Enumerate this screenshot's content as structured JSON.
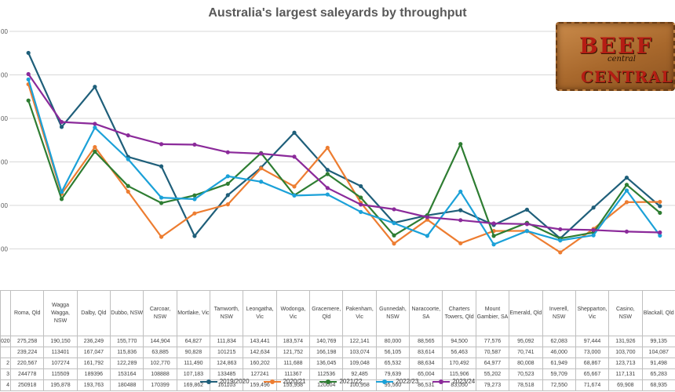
{
  "logo": {
    "word1": "BEEF",
    "word2": "central",
    "word3": "CENTRAL"
  },
  "chart_data": {
    "type": "line",
    "title": "Australia's largest saleyards by throughput",
    "categories": [
      "Roma, Qld",
      "Wagga Wagga, NSW",
      "Dalby, Qld",
      "Dubbo, NSW",
      "Carcoar, NSW",
      "Mortlake, Vic",
      "Tamworth, NSW",
      "Leongatha, Vic",
      "Wodonga, Vic",
      "Gracemere, Qld",
      "Pakenham, Vic",
      "Gunnedah, NSW",
      "Naracoorte, SA",
      "Charters Towers, Qld",
      "Mount Gambier, SA",
      "Emerald, Qld",
      "Inverell, NSW",
      "Shepparton, Vic",
      "Casino, NSW",
      "Blackall, Qld"
    ],
    "y_tick_labels": [
      "00",
      "00",
      "00",
      "00",
      "00",
      "00"
    ],
    "series": [
      {
        "name": "2019/2020",
        "color": "#1f5f7a",
        "row_label": "020",
        "values": [
          275258,
          190150,
          236249,
          155770,
          144904,
          64827,
          111834,
          143441,
          183574,
          140769,
          122141,
          80000,
          88565,
          94500,
          77576,
          95092,
          62083,
          97444,
          131926,
          99135
        ],
        "display": [
          "275,258",
          "190,150",
          "236,249",
          "155,770",
          "144,904",
          "64,827",
          "111,834",
          "143,441",
          "183,574",
          "140,769",
          "122,141",
          "80,000",
          "88,565",
          "94,500",
          "77,576",
          "95,092",
          "62,083",
          "97,444",
          "131,926",
          "99,135"
        ]
      },
      {
        "name": "2020/21",
        "color": "#ed7d31",
        "row_label": "",
        "values": [
          239224,
          113401,
          167047,
          115836,
          63885,
          90828,
          101215,
          142634,
          121752,
          166198,
          103074,
          56105,
          83614,
          56463,
          70587,
          70741,
          46000,
          73000,
          103700,
          104087
        ],
        "display": [
          "239,224",
          "113401",
          "167,047",
          "115,836",
          "63,885",
          "90,828",
          "101215",
          "142,634",
          "121,752",
          "166,198",
          "103,074",
          "56,105",
          "83,614",
          "56,463",
          "70,587",
          "70,741",
          "46,000",
          "73,000",
          "103,700",
          "104,087"
        ]
      },
      {
        "name": "2021/22",
        "color": "#2e7d32",
        "row_label": "2",
        "values": [
          220567,
          107274,
          161792,
          122289,
          102770,
          111490,
          124863,
          160202,
          111688,
          136045,
          109048,
          65532,
          88634,
          170492,
          64977,
          80008,
          61949,
          68867,
          123713,
          91498
        ],
        "display": [
          "220,567",
          "107274",
          "161,792",
          "122,289",
          "102,770",
          "111,490",
          "124,863",
          "160,202",
          "111,688",
          "136,045",
          "109,048",
          "65,532",
          "88,634",
          "170,492",
          "64,977",
          "80,008",
          "61,949",
          "68,867",
          "123,713",
          "91,498"
        ]
      },
      {
        "name": "2022/23",
        "color": "#1ba1d8",
        "row_label": "3",
        "values": [
          244778,
          115509,
          189396,
          153164,
          108888,
          107183,
          133485,
          127241,
          111367,
          112536,
          92485,
          79639,
          65004,
          115906,
          55202,
          70523,
          59709,
          65667,
          117131,
          65283
        ],
        "display": [
          "244778",
          "115509",
          "189396",
          "153164",
          "108888",
          "107,183",
          "133485",
          "127241",
          "111367",
          "112536",
          "92,485",
          "79,639",
          "65,004",
          "115,906",
          "55,202",
          "70,523",
          "59,709",
          "65,667",
          "117,131",
          "65,283"
        ]
      },
      {
        "name": "2023/24",
        "color": "#8b2a9a",
        "row_label": "4",
        "values": [
          250918,
          195878,
          193763,
          180488,
          170399,
          169862,
          161103,
          159496,
          155958,
          120004,
          100958,
          95560,
          86531,
          83050,
          79273,
          78518,
          72550,
          71674,
          69908,
          68935
        ],
        "display": [
          "250918",
          "195,878",
          "193,763",
          "180488",
          "170399",
          "169,862",
          "161103",
          "159,496",
          "155,958",
          "120004",
          "100,958",
          "95,560",
          "86,531",
          "83,050",
          "79,273",
          "78,518",
          "72,550",
          "71,674",
          "69,908",
          "68,935"
        ]
      }
    ],
    "legend_position": "bottom",
    "grid": true
  }
}
